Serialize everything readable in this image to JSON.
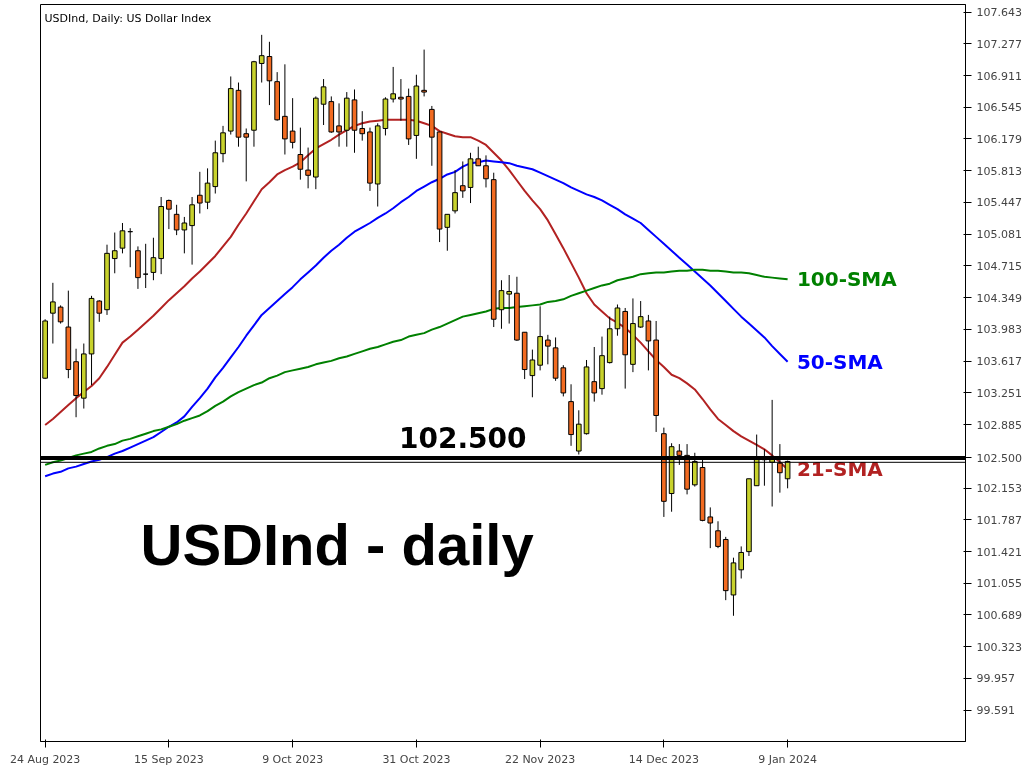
{
  "chart_data": {
    "type": "candlestick",
    "title": "USDInd, Daily:  US Dollar Index",
    "categories": [
      "24 Aug 2023",
      null,
      null,
      null,
      null,
      null,
      null,
      null,
      null,
      null,
      null,
      null,
      null,
      null,
      null,
      null,
      "15 Sep 2023",
      null,
      null,
      null,
      null,
      null,
      null,
      null,
      null,
      null,
      null,
      null,
      null,
      null,
      null,
      null,
      "9 Oct 2023",
      null,
      null,
      null,
      null,
      null,
      null,
      null,
      null,
      null,
      null,
      null,
      null,
      null,
      null,
      null,
      "31 Oct 2023",
      null,
      null,
      null,
      null,
      null,
      null,
      null,
      null,
      null,
      null,
      null,
      null,
      null,
      null,
      null,
      "22 Nov 2023",
      null,
      null,
      null,
      null,
      null,
      null,
      null,
      null,
      null,
      null,
      null,
      null,
      null,
      null,
      null,
      "14 Dec 2023",
      null,
      null,
      null,
      null,
      null,
      null,
      null,
      null,
      null,
      null,
      null,
      null,
      null,
      null,
      null,
      "9 Jan 2024"
    ],
    "ohlc": [
      [
        103.42,
        104.1,
        103.41,
        104.08
      ],
      [
        104.17,
        104.52,
        103.82,
        104.3
      ],
      [
        104.24,
        104.26,
        104.05,
        104.07
      ],
      [
        104.01,
        104.43,
        103.42,
        103.52
      ],
      [
        103.61,
        103.76,
        102.97,
        103.22
      ],
      [
        103.19,
        103.82,
        103.07,
        103.7
      ],
      [
        103.7,
        104.37,
        103.34,
        104.34
      ],
      [
        104.31,
        104.32,
        104.07,
        104.17
      ],
      [
        104.21,
        104.96,
        104.15,
        104.86
      ],
      [
        104.8,
        105.1,
        104.63,
        104.89
      ],
      [
        104.92,
        105.21,
        104.86,
        105.12
      ],
      [
        105.11,
        105.15,
        104.7,
        105.11
      ],
      [
        104.89,
        104.94,
        104.45,
        104.58
      ],
      [
        104.62,
        104.97,
        104.46,
        104.62
      ],
      [
        104.64,
        105.04,
        104.55,
        104.81
      ],
      [
        104.8,
        105.51,
        104.62,
        105.4
      ],
      [
        105.47,
        105.48,
        105.14,
        105.37
      ],
      [
        105.31,
        105.42,
        105.07,
        105.13
      ],
      [
        105.13,
        105.28,
        104.86,
        105.21
      ],
      [
        105.18,
        105.51,
        104.73,
        105.42
      ],
      [
        105.53,
        105.8,
        105.32,
        105.44
      ],
      [
        105.45,
        105.84,
        105.37,
        105.67
      ],
      [
        105.63,
        106.16,
        105.55,
        106.02
      ],
      [
        106.01,
        106.33,
        105.91,
        106.25
      ],
      [
        106.27,
        106.9,
        106.23,
        106.76
      ],
      [
        106.74,
        106.83,
        106.09,
        106.2
      ],
      [
        106.24,
        106.3,
        105.69,
        106.2
      ],
      [
        106.28,
        107.08,
        106.09,
        107.07
      ],
      [
        107.05,
        107.38,
        106.83,
        107.14
      ],
      [
        107.13,
        107.3,
        106.57,
        106.85
      ],
      [
        106.84,
        106.95,
        106.39,
        106.4
      ],
      [
        106.44,
        107.04,
        106.0,
        106.18
      ],
      [
        106.27,
        106.65,
        106.07,
        106.14
      ],
      [
        106.0,
        106.31,
        105.71,
        105.83
      ],
      [
        105.82,
        106.08,
        105.61,
        105.76
      ],
      [
        105.74,
        106.67,
        105.6,
        106.65
      ],
      [
        106.58,
        106.87,
        106.34,
        106.78
      ],
      [
        106.61,
        106.67,
        106.25,
        106.26
      ],
      [
        106.33,
        106.59,
        106.09,
        106.26
      ],
      [
        106.28,
        106.72,
        106.09,
        106.65
      ],
      [
        106.63,
        106.75,
        106.02,
        106.28
      ],
      [
        106.3,
        106.5,
        106.16,
        106.24
      ],
      [
        106.26,
        106.31,
        105.58,
        105.67
      ],
      [
        105.66,
        106.36,
        105.4,
        106.33
      ],
      [
        106.3,
        106.66,
        106.22,
        106.64
      ],
      [
        106.64,
        107.01,
        106.6,
        106.7
      ],
      [
        106.66,
        106.87,
        106.39,
        106.64
      ],
      [
        106.67,
        106.76,
        106.11,
        106.18
      ],
      [
        106.22,
        106.92,
        105.95,
        106.79
      ],
      [
        106.74,
        107.21,
        106.67,
        106.72
      ],
      [
        106.52,
        106.56,
        105.87,
        106.2
      ],
      [
        106.26,
        106.26,
        104.99,
        105.14
      ],
      [
        105.16,
        105.31,
        104.89,
        105.31
      ],
      [
        105.35,
        105.82,
        105.32,
        105.56
      ],
      [
        105.64,
        105.92,
        105.5,
        105.58
      ],
      [
        105.62,
        106.02,
        105.44,
        105.95
      ],
      [
        105.95,
        106.09,
        105.87,
        105.87
      ],
      [
        105.87,
        105.99,
        105.62,
        105.72
      ],
      [
        105.71,
        105.79,
        104.01,
        104.1
      ],
      [
        104.21,
        104.55,
        103.99,
        104.43
      ],
      [
        104.39,
        104.61,
        104.05,
        104.42
      ],
      [
        104.4,
        104.59,
        103.85,
        103.86
      ],
      [
        103.95,
        103.95,
        103.41,
        103.52
      ],
      [
        103.45,
        103.75,
        103.2,
        103.63
      ],
      [
        103.57,
        104.25,
        103.51,
        103.9
      ],
      [
        103.86,
        103.92,
        103.58,
        103.79
      ],
      [
        103.77,
        103.89,
        103.39,
        103.42
      ],
      [
        103.54,
        103.57,
        103.21,
        103.25
      ],
      [
        103.15,
        103.35,
        102.64,
        102.77
      ],
      [
        102.58,
        103.05,
        102.54,
        102.89
      ],
      [
        102.78,
        103.63,
        102.77,
        103.55
      ],
      [
        103.38,
        103.78,
        103.15,
        103.25
      ],
      [
        103.3,
        103.9,
        103.23,
        103.68
      ],
      [
        103.6,
        104.13,
        103.59,
        103.99
      ],
      [
        103.99,
        104.27,
        103.91,
        104.23
      ],
      [
        104.19,
        104.23,
        103.3,
        103.69
      ],
      [
        103.58,
        104.34,
        103.49,
        104.05
      ],
      [
        104.01,
        104.31,
        104.0,
        104.13
      ],
      [
        104.08,
        104.15,
        103.51,
        103.85
      ],
      [
        103.86,
        104.08,
        102.8,
        102.99
      ],
      [
        102.78,
        102.85,
        101.82,
        102.0
      ],
      [
        102.09,
        102.67,
        101.88,
        102.63
      ],
      [
        102.58,
        102.66,
        102.42,
        102.53
      ],
      [
        102.53,
        102.66,
        102.08,
        102.14
      ],
      [
        102.19,
        102.56,
        102.17,
        102.46
      ],
      [
        102.39,
        102.48,
        101.77,
        101.78
      ],
      [
        101.82,
        101.93,
        101.46,
        101.75
      ],
      [
        101.66,
        101.77,
        101.46,
        101.48
      ],
      [
        101.56,
        101.59,
        100.86,
        100.97
      ],
      [
        100.92,
        101.35,
        100.68,
        101.29
      ],
      [
        101.21,
        101.48,
        101.11,
        101.41
      ],
      [
        101.42,
        102.26,
        101.37,
        102.26
      ],
      [
        102.18,
        102.77,
        102.18,
        102.49
      ],
      [
        102.48,
        102.6,
        102.18,
        102.49
      ],
      [
        102.45,
        103.17,
        101.94,
        102.49
      ],
      [
        102.44,
        102.66,
        102.1,
        102.33
      ],
      [
        102.26,
        102.47,
        102.15,
        102.46
      ]
    ],
    "colors": [
      "#c8d22c",
      "#c8d22c",
      "#f26b21",
      "#f26b21",
      "#f26b21",
      "#c8d22c",
      "#c8d22c",
      "#f26b21",
      "#c8d22c",
      "#c8d22c",
      "#c8d22c",
      "#000000",
      "#f26b21",
      "#000000",
      "#c8d22c",
      "#c8d22c",
      "#f26b21",
      "#f26b21",
      "#c8d22c",
      "#c8d22c",
      "#f26b21",
      "#c8d22c",
      "#c8d22c",
      "#c8d22c",
      "#c8d22c",
      "#f26b21",
      "#f26b21",
      "#c8d22c",
      "#c8d22c",
      "#f26b21",
      "#f26b21",
      "#f26b21",
      "#f26b21",
      "#f26b21",
      "#f26b21",
      "#c8d22c",
      "#c8d22c",
      "#f26b21",
      "#f26b21",
      "#c8d22c",
      "#f26b21",
      "#f26b21",
      "#f26b21",
      "#c8d22c",
      "#c8d22c",
      "#c8d22c",
      "#f26b21",
      "#f26b21",
      "#c8d22c",
      "#f26b21",
      "#f26b21",
      "#f26b21",
      "#c8d22c",
      "#c8d22c",
      "#f26b21",
      "#c8d22c",
      "#f26b21",
      "#f26b21",
      "#f26b21",
      "#c8d22c",
      "#c8d22c",
      "#f26b21",
      "#f26b21",
      "#c8d22c",
      "#c8d22c",
      "#f26b21",
      "#f26b21",
      "#f26b21",
      "#f26b21",
      "#c8d22c",
      "#c8d22c",
      "#f26b21",
      "#c8d22c",
      "#c8d22c",
      "#c8d22c",
      "#f26b21",
      "#c8d22c",
      "#c8d22c",
      "#f26b21",
      "#f26b21",
      "#f26b21",
      "#c8d22c",
      "#f26b21",
      "#f26b21",
      "#c8d22c",
      "#f26b21",
      "#f26b21",
      "#f26b21",
      "#f26b21",
      "#c8d22c",
      "#c8d22c",
      "#c8d22c",
      "#c8d22c",
      "#c8d22c",
      "#c8d22c",
      "#f26b21",
      "#c8d22c"
    ],
    "series": [
      {
        "type": "line",
        "name": "21-SMA",
        "color": "#b22222",
        "values": [
          102.88,
          102.95,
          103.03,
          103.11,
          103.19,
          103.26,
          103.33,
          103.42,
          103.55,
          103.69,
          103.83,
          103.9,
          103.98,
          104.06,
          104.14,
          104.23,
          104.32,
          104.4,
          104.48,
          104.57,
          104.65,
          104.74,
          104.83,
          104.94,
          105.05,
          105.19,
          105.32,
          105.46,
          105.6,
          105.68,
          105.77,
          105.82,
          105.86,
          105.91,
          105.99,
          106.07,
          106.12,
          106.17,
          106.23,
          106.28,
          106.33,
          106.36,
          106.38,
          106.39,
          106.4,
          106.4,
          106.4,
          106.4,
          106.39,
          106.36,
          106.33,
          106.27,
          106.24,
          106.21,
          106.2,
          106.2,
          106.16,
          106.11,
          106.02,
          105.93,
          105.82,
          105.7,
          105.58,
          105.47,
          105.37,
          105.24,
          105.08,
          104.92,
          104.75,
          104.58,
          104.4,
          104.27,
          104.19,
          104.11,
          104.06,
          104.0,
          103.92,
          103.83,
          103.73,
          103.63,
          103.55,
          103.46,
          103.42,
          103.36,
          103.29,
          103.18,
          103.06,
          102.95,
          102.88,
          102.81,
          102.75,
          102.7,
          102.65,
          102.6,
          102.53,
          102.45,
          102.37
        ]
      },
      {
        "type": "line",
        "name": "50-SMA",
        "color": "#0000ff",
        "values": [
          102.29,
          102.32,
          102.34,
          102.38,
          102.4,
          102.43,
          102.46,
          102.48,
          102.51,
          102.55,
          102.58,
          102.62,
          102.66,
          102.7,
          102.74,
          102.8,
          102.86,
          102.91,
          102.98,
          103.09,
          103.19,
          103.3,
          103.43,
          103.54,
          103.66,
          103.78,
          103.91,
          104.03,
          104.15,
          104.23,
          104.31,
          104.39,
          104.47,
          104.56,
          104.64,
          104.72,
          104.81,
          104.89,
          104.96,
          105.04,
          105.11,
          105.16,
          105.21,
          105.27,
          105.32,
          105.38,
          105.45,
          105.51,
          105.58,
          105.63,
          105.68,
          105.72,
          105.77,
          105.8,
          105.86,
          105.9,
          105.91,
          105.93,
          105.92,
          105.91,
          105.9,
          105.87,
          105.85,
          105.83,
          105.79,
          105.75,
          105.71,
          105.67,
          105.62,
          105.58,
          105.54,
          105.51,
          105.47,
          105.42,
          105.37,
          105.31,
          105.26,
          105.21,
          105.13,
          105.05,
          104.97,
          104.89,
          104.81,
          104.73,
          104.65,
          104.57,
          104.49,
          104.4,
          104.31,
          104.22,
          104.13,
          104.05,
          103.97,
          103.89,
          103.79,
          103.7,
          103.61
        ]
      },
      {
        "type": "line",
        "name": "100-SMA",
        "color": "#008000",
        "values": [
          102.42,
          102.45,
          102.47,
          102.5,
          102.53,
          102.55,
          102.57,
          102.61,
          102.64,
          102.66,
          102.7,
          102.72,
          102.75,
          102.78,
          102.81,
          102.83,
          102.86,
          102.89,
          102.93,
          102.96,
          102.99,
          103.04,
          103.1,
          103.15,
          103.21,
          103.26,
          103.3,
          103.34,
          103.37,
          103.42,
          103.45,
          103.49,
          103.51,
          103.53,
          103.55,
          103.58,
          103.6,
          103.62,
          103.65,
          103.67,
          103.7,
          103.73,
          103.76,
          103.78,
          103.81,
          103.84,
          103.86,
          103.9,
          103.92,
          103.94,
          103.98,
          104.01,
          104.05,
          104.09,
          104.13,
          104.15,
          104.17,
          104.19,
          104.22,
          104.23,
          104.23,
          104.24,
          104.25,
          104.26,
          104.27,
          104.3,
          104.31,
          104.33,
          104.37,
          104.4,
          104.43,
          104.46,
          104.49,
          104.51,
          104.55,
          104.57,
          104.59,
          104.62,
          104.63,
          104.64,
          104.64,
          104.65,
          104.66,
          104.66,
          104.67,
          104.67,
          104.66,
          104.66,
          104.65,
          104.64,
          104.64,
          104.63,
          104.61,
          104.59,
          104.58,
          104.57,
          104.56
        ]
      }
    ],
    "ylim": [
      99.23,
      107.73
    ],
    "yticks": [
      107.643,
      107.277,
      106.911,
      106.545,
      106.179,
      105.813,
      105.447,
      105.081,
      104.715,
      104.349,
      103.983,
      103.617,
      103.251,
      102.885,
      {
        "value": 102.5,
        "label": "102.500"
      },
      102.153,
      101.787,
      101.421,
      101.055,
      100.689,
      100.323,
      99.957,
      99.591
    ],
    "ref_lines": [
      {
        "axis": "y",
        "value": 102.5,
        "label": "102.500",
        "color": "#000000"
      },
      {
        "axis": "y",
        "value": 102.45,
        "color": "#000000"
      }
    ],
    "annotations": [
      "USDInd - daily"
    ],
    "grid": false
  }
}
